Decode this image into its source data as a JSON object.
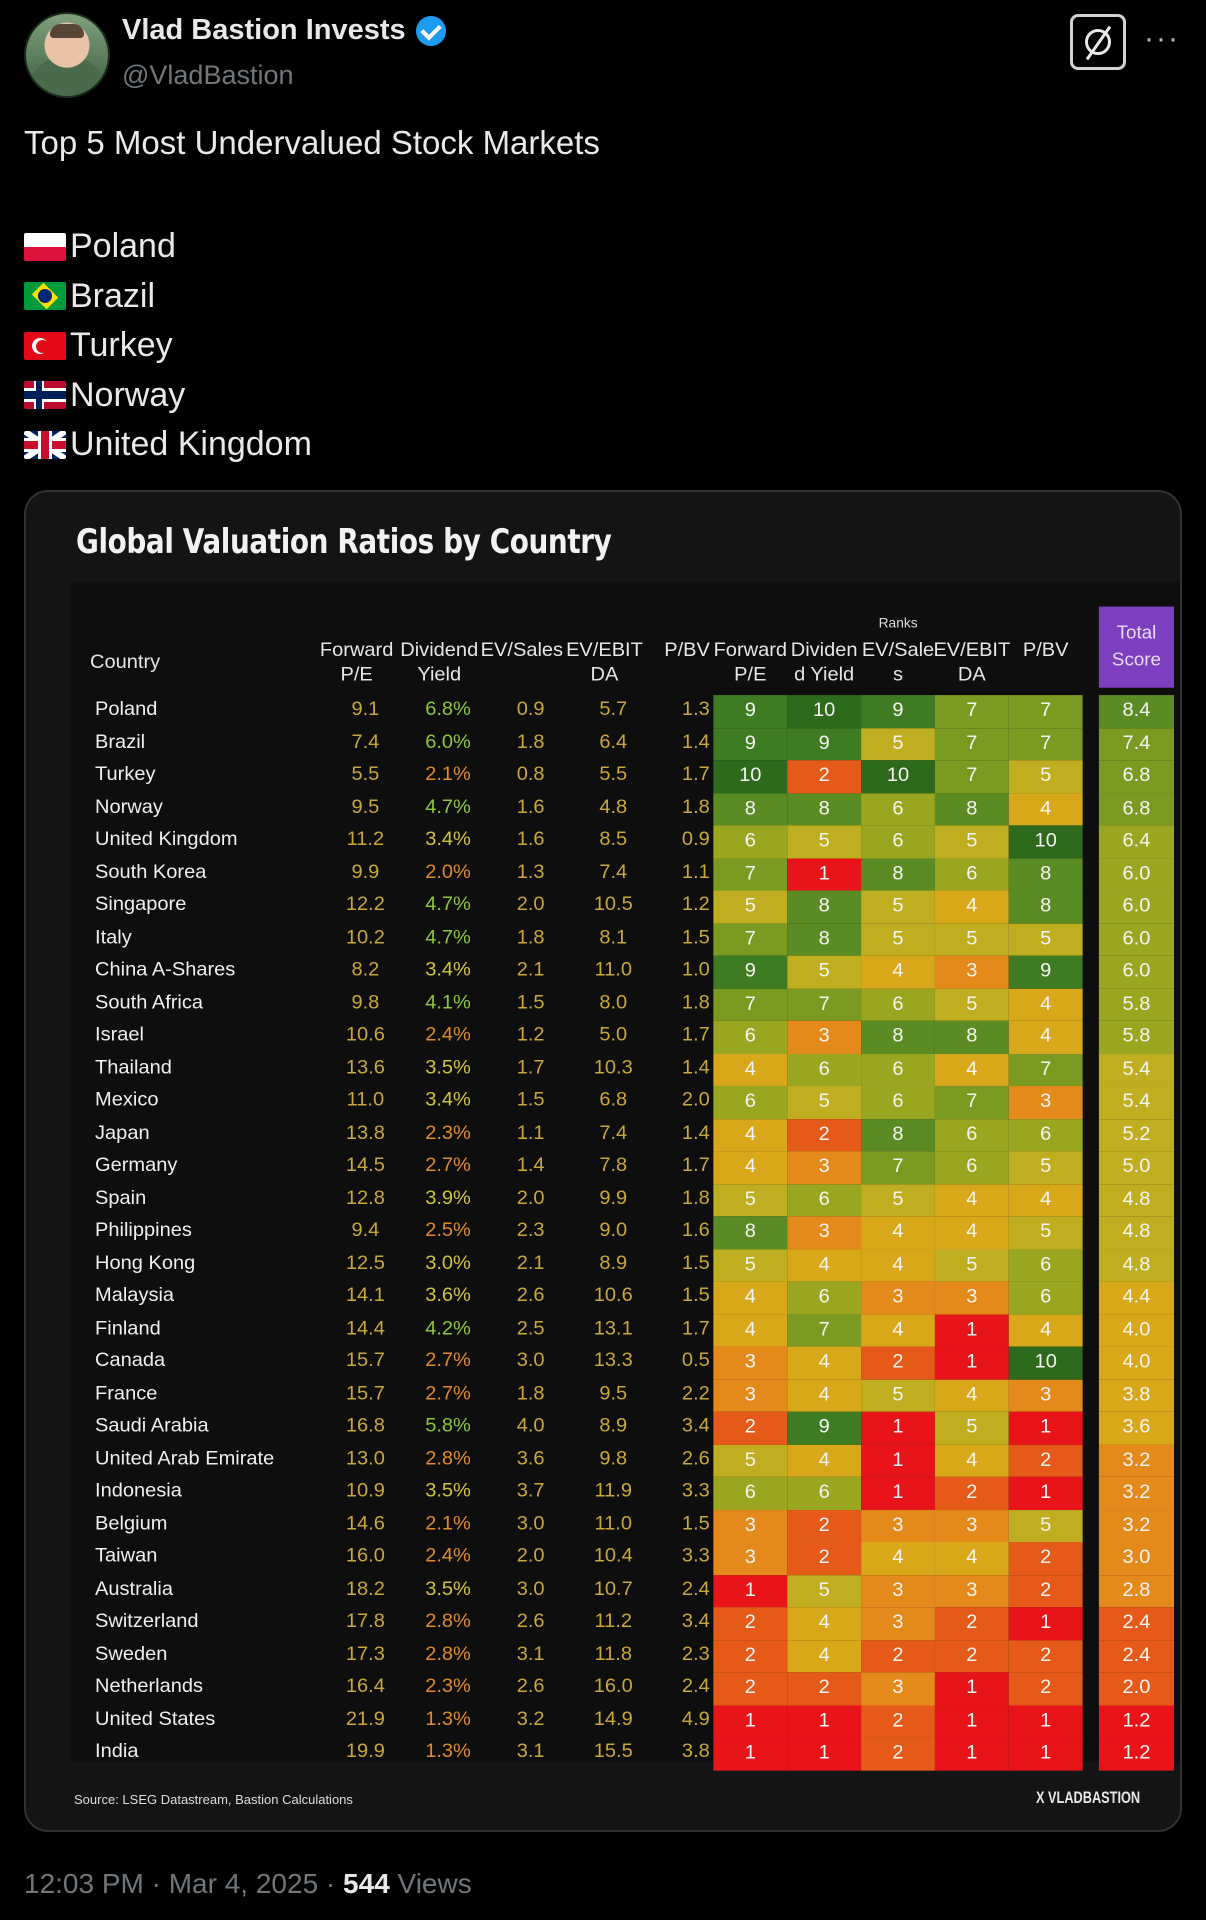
{
  "author": {
    "display_name": "Vlad Bastion Invests",
    "handle": "@VladBastion"
  },
  "tweet": {
    "text": "Top 5 Most Undervalued Stock Markets",
    "top5": [
      {
        "flag": "flag-pl",
        "name": "Poland"
      },
      {
        "flag": "flag-br",
        "name": "Brazil"
      },
      {
        "flag": "flag-tr",
        "name": "Turkey"
      },
      {
        "flag": "flag-no",
        "name": "Norway"
      },
      {
        "flag": "flag-uk",
        "name": "United Kingdom"
      }
    ],
    "timestamp": "12:03 PM · Mar 4, 2025",
    "separator": " · ",
    "views_count": "544",
    "views_label": " Views"
  },
  "chart_data": {
    "type": "table",
    "title": "Global Valuation Ratios by Country",
    "ranks_label": "Ranks",
    "headers": {
      "country": "Country",
      "metrics": [
        "Forward P/E",
        "Dividend Yield",
        "EV/Sales",
        "EV/EBIT DA",
        "P/BV"
      ],
      "rank_metrics": [
        "Forward P/E",
        "Dividen d Yield",
        "EV/Sale s",
        "EV/EBIT DA",
        "P/BV"
      ],
      "total": "Total Score"
    },
    "rows": [
      {
        "country": "Poland",
        "metrics": [
          "9.1",
          "6.8%",
          "0.9",
          "5.7",
          "1.3"
        ],
        "ranks": [
          9,
          10,
          9,
          7,
          7
        ],
        "total": "8.4"
      },
      {
        "country": "Brazil",
        "metrics": [
          "7.4",
          "6.0%",
          "1.8",
          "6.4",
          "1.4"
        ],
        "ranks": [
          9,
          9,
          5,
          7,
          7
        ],
        "total": "7.4"
      },
      {
        "country": "Turkey",
        "metrics": [
          "5.5",
          "2.1%",
          "0.8",
          "5.5",
          "1.7"
        ],
        "ranks": [
          10,
          2,
          10,
          7,
          5
        ],
        "total": "6.8"
      },
      {
        "country": "Norway",
        "metrics": [
          "9.5",
          "4.7%",
          "1.6",
          "4.8",
          "1.8"
        ],
        "ranks": [
          8,
          8,
          6,
          8,
          4
        ],
        "total": "6.8"
      },
      {
        "country": "United Kingdom",
        "metrics": [
          "11.2",
          "3.4%",
          "1.6",
          "8.5",
          "0.9"
        ],
        "ranks": [
          6,
          5,
          6,
          5,
          10
        ],
        "total": "6.4"
      },
      {
        "country": "South Korea",
        "metrics": [
          "9.9",
          "2.0%",
          "1.3",
          "7.4",
          "1.1"
        ],
        "ranks": [
          7,
          1,
          8,
          6,
          8
        ],
        "total": "6.0"
      },
      {
        "country": "Singapore",
        "metrics": [
          "12.2",
          "4.7%",
          "2.0",
          "10.5",
          "1.2"
        ],
        "ranks": [
          5,
          8,
          5,
          4,
          8
        ],
        "total": "6.0"
      },
      {
        "country": "Italy",
        "metrics": [
          "10.2",
          "4.7%",
          "1.8",
          "8.1",
          "1.5"
        ],
        "ranks": [
          7,
          8,
          5,
          5,
          5
        ],
        "total": "6.0"
      },
      {
        "country": "China A-Shares",
        "metrics": [
          "8.2",
          "3.4%",
          "2.1",
          "11.0",
          "1.0"
        ],
        "ranks": [
          9,
          5,
          4,
          3,
          9
        ],
        "total": "6.0"
      },
      {
        "country": "South Africa",
        "metrics": [
          "9.8",
          "4.1%",
          "1.5",
          "8.0",
          "1.8"
        ],
        "ranks": [
          7,
          7,
          6,
          5,
          4
        ],
        "total": "5.8"
      },
      {
        "country": "Israel",
        "metrics": [
          "10.6",
          "2.4%",
          "1.2",
          "5.0",
          "1.7"
        ],
        "ranks": [
          6,
          3,
          8,
          8,
          4
        ],
        "total": "5.8"
      },
      {
        "country": "Thailand",
        "metrics": [
          "13.6",
          "3.5%",
          "1.7",
          "10.3",
          "1.4"
        ],
        "ranks": [
          4,
          6,
          6,
          4,
          7
        ],
        "total": "5.4"
      },
      {
        "country": "Mexico",
        "metrics": [
          "11.0",
          "3.4%",
          "1.5",
          "6.8",
          "2.0"
        ],
        "ranks": [
          6,
          5,
          6,
          7,
          3
        ],
        "total": "5.4"
      },
      {
        "country": "Japan",
        "metrics": [
          "13.8",
          "2.3%",
          "1.1",
          "7.4",
          "1.4"
        ],
        "ranks": [
          4,
          2,
          8,
          6,
          6
        ],
        "total": "5.2"
      },
      {
        "country": "Germany",
        "metrics": [
          "14.5",
          "2.7%",
          "1.4",
          "7.8",
          "1.7"
        ],
        "ranks": [
          4,
          3,
          7,
          6,
          5
        ],
        "total": "5.0"
      },
      {
        "country": "Spain",
        "metrics": [
          "12.8",
          "3.9%",
          "2.0",
          "9.9",
          "1.8"
        ],
        "ranks": [
          5,
          6,
          5,
          4,
          4
        ],
        "total": "4.8"
      },
      {
        "country": "Philippines",
        "metrics": [
          "9.4",
          "2.5%",
          "2.3",
          "9.0",
          "1.6"
        ],
        "ranks": [
          8,
          3,
          4,
          4,
          5
        ],
        "total": "4.8"
      },
      {
        "country": "Hong Kong",
        "metrics": [
          "12.5",
          "3.0%",
          "2.1",
          "8.9",
          "1.5"
        ],
        "ranks": [
          5,
          4,
          4,
          5,
          6
        ],
        "total": "4.8"
      },
      {
        "country": "Malaysia",
        "metrics": [
          "14.1",
          "3.6%",
          "2.6",
          "10.6",
          "1.5"
        ],
        "ranks": [
          4,
          6,
          3,
          3,
          6
        ],
        "total": "4.4"
      },
      {
        "country": "Finland",
        "metrics": [
          "14.4",
          "4.2%",
          "2.5",
          "13.1",
          "1.7"
        ],
        "ranks": [
          4,
          7,
          4,
          1,
          4
        ],
        "total": "4.0"
      },
      {
        "country": "Canada",
        "metrics": [
          "15.7",
          "2.7%",
          "3.0",
          "13.3",
          "0.5"
        ],
        "ranks": [
          3,
          4,
          2,
          1,
          10
        ],
        "total": "4.0"
      },
      {
        "country": "France",
        "metrics": [
          "15.7",
          "2.7%",
          "1.8",
          "9.5",
          "2.2"
        ],
        "ranks": [
          3,
          4,
          5,
          4,
          3
        ],
        "total": "3.8"
      },
      {
        "country": "Saudi Arabia",
        "metrics": [
          "16.8",
          "5.8%",
          "4.0",
          "8.9",
          "3.4"
        ],
        "ranks": [
          2,
          9,
          1,
          5,
          1
        ],
        "total": "3.6"
      },
      {
        "country": "United Arab Emirate",
        "metrics": [
          "13.0",
          "2.8%",
          "3.6",
          "9.8",
          "2.6"
        ],
        "ranks": [
          5,
          4,
          1,
          4,
          2
        ],
        "total": "3.2"
      },
      {
        "country": "Indonesia",
        "metrics": [
          "10.9",
          "3.5%",
          "3.7",
          "11.9",
          "3.3"
        ],
        "ranks": [
          6,
          6,
          1,
          2,
          1
        ],
        "total": "3.2"
      },
      {
        "country": "Belgium",
        "metrics": [
          "14.6",
          "2.1%",
          "3.0",
          "11.0",
          "1.5"
        ],
        "ranks": [
          3,
          2,
          3,
          3,
          5
        ],
        "total": "3.2"
      },
      {
        "country": "Taiwan",
        "metrics": [
          "16.0",
          "2.4%",
          "2.0",
          "10.4",
          "3.3"
        ],
        "ranks": [
          3,
          2,
          4,
          4,
          2
        ],
        "total": "3.0"
      },
      {
        "country": "Australia",
        "metrics": [
          "18.2",
          "3.5%",
          "3.0",
          "10.7",
          "2.4"
        ],
        "ranks": [
          1,
          5,
          3,
          3,
          2
        ],
        "total": "2.8"
      },
      {
        "country": "Switzerland",
        "metrics": [
          "17.8",
          "2.8%",
          "2.6",
          "11.2",
          "3.4"
        ],
        "ranks": [
          2,
          4,
          3,
          2,
          1
        ],
        "total": "2.4"
      },
      {
        "country": "Sweden",
        "metrics": [
          "17.3",
          "2.8%",
          "3.1",
          "11.8",
          "2.3"
        ],
        "ranks": [
          2,
          4,
          2,
          2,
          2
        ],
        "total": "2.4"
      },
      {
        "country": "Netherlands",
        "metrics": [
          "16.4",
          "2.3%",
          "2.6",
          "16.0",
          "2.4"
        ],
        "ranks": [
          2,
          2,
          3,
          1,
          2
        ],
        "total": "2.0"
      },
      {
        "country": "United States",
        "metrics": [
          "21.9",
          "1.3%",
          "3.2",
          "14.9",
          "4.9"
        ],
        "ranks": [
          1,
          1,
          2,
          1,
          1
        ],
        "total": "1.2"
      },
      {
        "country": "India",
        "metrics": [
          "19.9",
          "1.3%",
          "3.1",
          "15.5",
          "3.8"
        ],
        "ranks": [
          1,
          1,
          2,
          1,
          1
        ],
        "total": "1.2"
      }
    ],
    "source": "Source: LSEG Datastream, Bastion Calculations",
    "brand": "X VLADBASTION"
  },
  "colors": {
    "accent_purple": "#7b3fbf",
    "verified_blue": "#1d9bf0",
    "rank_scale": [
      "#e8141a",
      "#e8141a",
      "#e55a18",
      "#e48a1a",
      "#d8a81a",
      "#bfae1f",
      "#9aa61f",
      "#7b9a22",
      "#5b8c23",
      "#3e7b22",
      "#2e6a1c"
    ]
  }
}
